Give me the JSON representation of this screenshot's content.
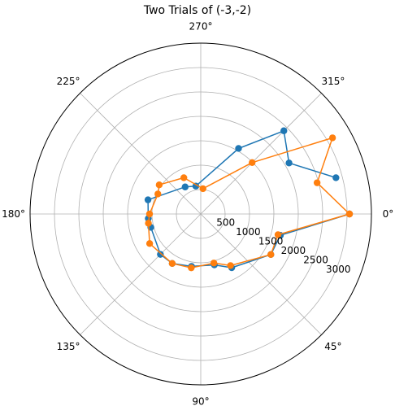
{
  "chart_data": {
    "type": "line",
    "projection": "polar",
    "title": "Two Trials of (-3,-2)",
    "theta_direction": "clockwise",
    "theta_zero_location": "E",
    "r_lim": [
      0,
      3500
    ],
    "r_ticks": [
      500,
      1000,
      1500,
      2000,
      2500,
      3000
    ],
    "r_tick_labels": [
      "500",
      "1000",
      "1500",
      "2000",
      "2500",
      "3000"
    ],
    "theta_ticks_deg": [
      0,
      45,
      90,
      135,
      180,
      225,
      270,
      315
    ],
    "theta_tick_labels": [
      "0°",
      "45°",
      "90°",
      "135°",
      "180°",
      "225°",
      "270°",
      "315°"
    ],
    "grid": true,
    "series": [
      {
        "color": "#1f77b4",
        "points": [
          {
            "theta_deg": 0,
            "r": 3050
          },
          {
            "theta_deg": 15,
            "r": 1690
          },
          {
            "theta_deg": 30,
            "r": 1660
          },
          {
            "theta_deg": 60,
            "r": 1270
          },
          {
            "theta_deg": 75,
            "r": 1080
          },
          {
            "theta_deg": 100,
            "r": 1090
          },
          {
            "theta_deg": 120,
            "r": 1170
          },
          {
            "theta_deg": 135,
            "r": 1170
          },
          {
            "theta_deg": 165,
            "r": 1060
          },
          {
            "theta_deg": 175,
            "r": 1080
          },
          {
            "theta_deg": 195,
            "r": 1120
          },
          {
            "theta_deg": 240,
            "r": 640
          },
          {
            "theta_deg": 260,
            "r": 580
          },
          {
            "theta_deg": 300,
            "r": 1550
          },
          {
            "theta_deg": 315,
            "r": 2410
          },
          {
            "theta_deg": 330,
            "r": 2090
          },
          {
            "theta_deg": 345,
            "r": 2870
          }
        ]
      },
      {
        "color": "#ff7f0e",
        "points": [
          {
            "theta_deg": 0,
            "r": 3050
          },
          {
            "theta_deg": 15,
            "r": 1640
          },
          {
            "theta_deg": 30,
            "r": 1660
          },
          {
            "theta_deg": 60,
            "r": 1220
          },
          {
            "theta_deg": 75,
            "r": 1040
          },
          {
            "theta_deg": 100,
            "r": 1120
          },
          {
            "theta_deg": 120,
            "r": 1170
          },
          {
            "theta_deg": 150,
            "r": 1210
          },
          {
            "theta_deg": 170,
            "r": 1090
          },
          {
            "theta_deg": 180,
            "r": 1050
          },
          {
            "theta_deg": 205,
            "r": 970
          },
          {
            "theta_deg": 215,
            "r": 1040
          },
          {
            "theta_deg": 245,
            "r": 820
          },
          {
            "theta_deg": 275,
            "r": 520
          },
          {
            "theta_deg": 315,
            "r": 1490
          },
          {
            "theta_deg": 330,
            "r": 3120
          },
          {
            "theta_deg": 345,
            "r": 2470
          },
          {
            "theta_deg": 0,
            "r": 3050
          }
        ]
      }
    ]
  }
}
